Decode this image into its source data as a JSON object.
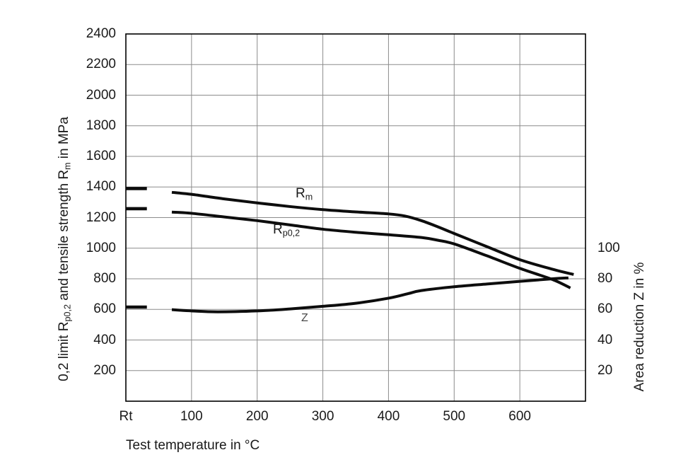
{
  "chart_data": {
    "type": "line",
    "title": "",
    "xlabel": "Test temperature in °C",
    "x_axis": {
      "ticks": [
        {
          "label": "Rt",
          "t": 0
        },
        {
          "label": "100",
          "t": 100
        },
        {
          "label": "200",
          "t": 200
        },
        {
          "label": "300",
          "t": 300
        },
        {
          "label": "400",
          "t": 400
        },
        {
          "label": "500",
          "t": 500
        },
        {
          "label": "600",
          "t": 600
        }
      ],
      "range_degC": [
        0,
        700
      ],
      "grid": true
    },
    "y_left_axis": {
      "title_parts": [
        {
          "t": "0,2 limit R"
        },
        {
          "s": "p0,2"
        },
        {
          "t": " and tensile strength R"
        },
        {
          "s": "m"
        },
        {
          "t": " in MPa"
        }
      ],
      "ticks": [
        2400,
        2200,
        2000,
        1800,
        1600,
        1400,
        1200,
        1000,
        800,
        600,
        400,
        200
      ],
      "range": [
        0,
        2400
      ],
      "grid": true
    },
    "y_right_axis": {
      "title": "Area reduction Z in %",
      "ticks": [
        100,
        80,
        60,
        40,
        20
      ],
      "range": [
        0,
        240
      ]
    },
    "rt_dash_t_span": [
      0,
      32
    ],
    "series": [
      {
        "name": "Rm",
        "label_parts": [
          {
            "t": "R"
          },
          {
            "s": "m"
          }
        ],
        "axis": "left",
        "unit": "MPa",
        "rt_value": 1390,
        "points": [
          [
            70,
            1365
          ],
          [
            100,
            1352
          ],
          [
            150,
            1322
          ],
          [
            200,
            1296
          ],
          [
            250,
            1272
          ],
          [
            300,
            1252
          ],
          [
            350,
            1237
          ],
          [
            400,
            1224
          ],
          [
            425,
            1210
          ],
          [
            450,
            1180
          ],
          [
            475,
            1140
          ],
          [
            500,
            1096
          ],
          [
            550,
            1010
          ],
          [
            600,
            925
          ],
          [
            650,
            862
          ],
          [
            682,
            828
          ]
        ]
      },
      {
        "name": "Rp0,2",
        "label_parts": [
          {
            "t": "R"
          },
          {
            "s": "p0,2"
          }
        ],
        "axis": "left",
        "unit": "MPa",
        "rt_value": 1258,
        "points": [
          [
            70,
            1236
          ],
          [
            100,
            1228
          ],
          [
            150,
            1204
          ],
          [
            200,
            1180
          ],
          [
            250,
            1152
          ],
          [
            300,
            1124
          ],
          [
            350,
            1104
          ],
          [
            400,
            1088
          ],
          [
            450,
            1070
          ],
          [
            475,
            1052
          ],
          [
            500,
            1028
          ],
          [
            550,
            950
          ],
          [
            600,
            868
          ],
          [
            650,
            795
          ],
          [
            677,
            740
          ]
        ]
      },
      {
        "name": "Z",
        "label_parts": [
          {
            "t": "Z"
          }
        ],
        "axis": "right",
        "unit": "%",
        "rt_value": 61.5,
        "points": [
          [
            70,
            59.8
          ],
          [
            100,
            59.0
          ],
          [
            140,
            58.4
          ],
          [
            200,
            59.0
          ],
          [
            250,
            60.3
          ],
          [
            300,
            62.0
          ],
          [
            350,
            64.0
          ],
          [
            400,
            67.3
          ],
          [
            430,
            70.3
          ],
          [
            450,
            72.3
          ],
          [
            500,
            74.8
          ],
          [
            550,
            76.6
          ],
          [
            600,
            78.3
          ],
          [
            650,
            80.0
          ],
          [
            674,
            80.6
          ]
        ]
      }
    ],
    "colors": {
      "curve": "#0d0d0d",
      "grid": "#8c8c8c",
      "border": "#000000",
      "text": "#1a1a1a",
      "z_label": "#4a4a4a",
      "background": "#ffffff"
    }
  }
}
